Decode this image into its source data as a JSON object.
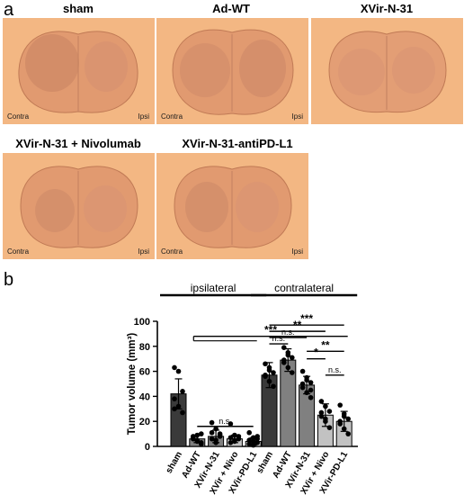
{
  "panel_a": {
    "letter": "a",
    "slices": [
      {
        "title": "sham",
        "left_label": "Contra",
        "right_label": "Ipsi"
      },
      {
        "title": "Ad-WT",
        "left_label": "Contra",
        "right_label": "Ipsi"
      },
      {
        "title": "XVir-N-31",
        "left_label": "Contra",
        "right_label": "Ipsi"
      },
      {
        "title": "XVir-N-31 + Nivolumab",
        "left_label": "Contra",
        "right_label": "Ipsi"
      },
      {
        "title": "XVir-N-31-antiPD-L1",
        "left_label": "Contra",
        "right_label": "Ipsi"
      }
    ]
  },
  "panel_b": {
    "letter": "b"
  },
  "colors": {
    "slice_bg": "#f3b783",
    "slice_tissue": "#d98f6a",
    "bar_dark": "#3a3a3a",
    "bar_mid": "#808080",
    "bar_light": "#c2c2c2",
    "bar_white": "#ffffff"
  },
  "chart_data": {
    "type": "bar",
    "ylabel": "Tumor volume (mm³)",
    "ylim": [
      0,
      100
    ],
    "yticks": [
      0,
      20,
      40,
      60,
      80,
      100
    ],
    "groups": [
      "ipsilateral",
      "contralateral"
    ],
    "categories": [
      "sham",
      "Ad-WT",
      "XVir-N-31",
      "XVir + Nivo",
      "XVir-PD-L1",
      "sham",
      "Ad-WT",
      "XVir-N-31",
      "XVir + Nivo",
      "XVir-PD-L1"
    ],
    "values": [
      42,
      6,
      8,
      6,
      4,
      57,
      69,
      49,
      25,
      20
    ],
    "errors": [
      12,
      3,
      5,
      3,
      3,
      10,
      9,
      7,
      9,
      8
    ],
    "points": [
      [
        63,
        60,
        44,
        38,
        32,
        27,
        30
      ],
      [
        8,
        4,
        2,
        6,
        9,
        3,
        7,
        5,
        10
      ],
      [
        19,
        14,
        9,
        6,
        3,
        8,
        11,
        5,
        10
      ],
      [
        18,
        9,
        6,
        3,
        4,
        8,
        7,
        5
      ],
      [
        11,
        7,
        3,
        2,
        4,
        8,
        5,
        1,
        6
      ],
      [
        66,
        63,
        59,
        56,
        52,
        48,
        57,
        61
      ],
      [
        79,
        75,
        71,
        67,
        63,
        59,
        69,
        73
      ],
      [
        60,
        55,
        51,
        47,
        43,
        39,
        50,
        53,
        45
      ],
      [
        36,
        32,
        28,
        24,
        20,
        15,
        27,
        22
      ],
      [
        33,
        26,
        22,
        18,
        14,
        10,
        20,
        24
      ]
    ],
    "significance": [
      {
        "label": "***",
        "from": [
          1,
          4
        ],
        "to": [
          5,
          9
        ],
        "y": 88
      },
      {
        "label": "n.s.",
        "from": [
          1,
          1
        ],
        "to": [
          4,
          4
        ],
        "y": 16
      },
      {
        "label": "***",
        "from": [
          5,
          5
        ],
        "to": [
          9,
          9
        ],
        "y": 97
      },
      {
        "label": "**",
        "from": [
          5,
          5
        ],
        "to": [
          8,
          8
        ],
        "y": 92
      },
      {
        "label": "n.s.",
        "from": [
          5,
          5
        ],
        "to": [
          7,
          7
        ],
        "y": 87
      },
      {
        "label": "n.s.",
        "from": [
          5,
          5
        ],
        "to": [
          6,
          6
        ],
        "y": 82
      },
      {
        "label": "**",
        "from": [
          7,
          7
        ],
        "to": [
          9,
          9
        ],
        "y": 76
      },
      {
        "label": "*",
        "from": [
          7,
          7
        ],
        "to": [
          8,
          8
        ],
        "y": 70
      },
      {
        "label": "n.s.",
        "from": [
          8,
          8
        ],
        "to": [
          9,
          9
        ],
        "y": 57
      }
    ]
  }
}
